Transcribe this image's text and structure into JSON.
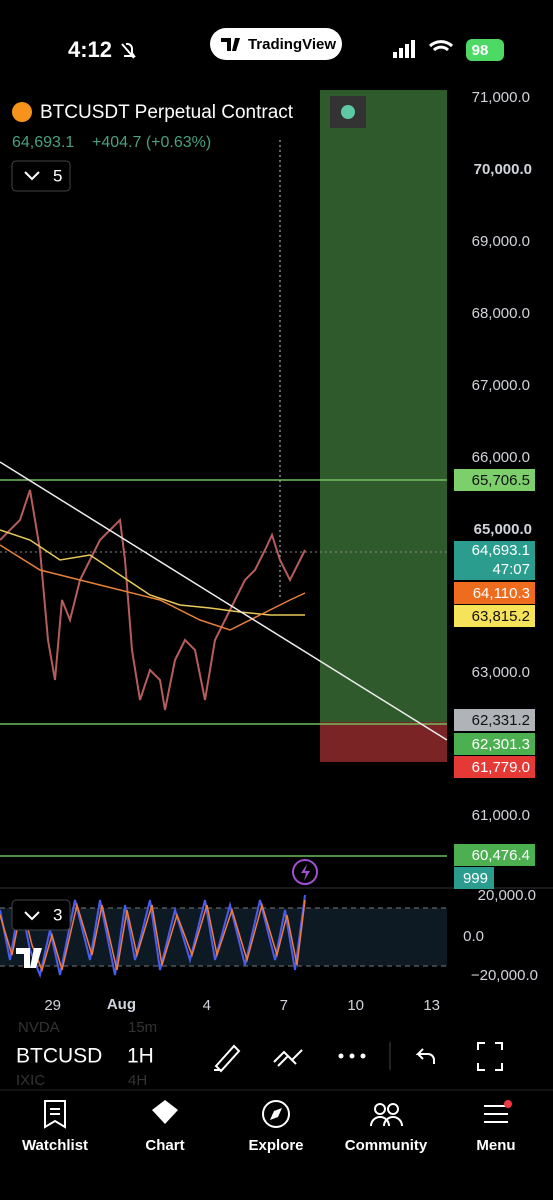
{
  "status_bar": {
    "time": "4:12",
    "app": "TradingView",
    "battery": "98"
  },
  "symbol": {
    "name": "BTCUSDT Perpetual Contract",
    "price": "64,693.1",
    "change": "+404.7 (+0.63%)",
    "indicators_count": "5"
  },
  "price_axis": [
    "71,000.0",
    "70,000.0",
    "69,000.0",
    "68,000.0",
    "67,000.0",
    "66,000.0",
    "65,000.0",
    "63,000.0",
    "61,000.0"
  ],
  "price_tags": {
    "upper_line": "65,706.5",
    "last": "64,693.1",
    "countdown": "47:07",
    "ma_orange": "64,110.3",
    "ma_yellow": "63,815.2",
    "trend_line": "62,331.2",
    "lower_line": "62,301.3",
    "stop": "61,779.0",
    "bottom_line": "60,476.4",
    "volume": "999"
  },
  "oscillator": {
    "indicators_count": "3",
    "axis": [
      "20,000.0",
      "0.0",
      "−20,000.0"
    ]
  },
  "time_axis": [
    "29",
    "Aug",
    "4",
    "7",
    "10",
    "13"
  ],
  "toolbar": {
    "symbol": "BTCUSD",
    "interval": "1H",
    "ghost": [
      "NVDA",
      "15m",
      "IXIC",
      "4H"
    ]
  },
  "nav": [
    "Watchlist",
    "Chart",
    "Explore",
    "Community",
    "Menu"
  ]
}
